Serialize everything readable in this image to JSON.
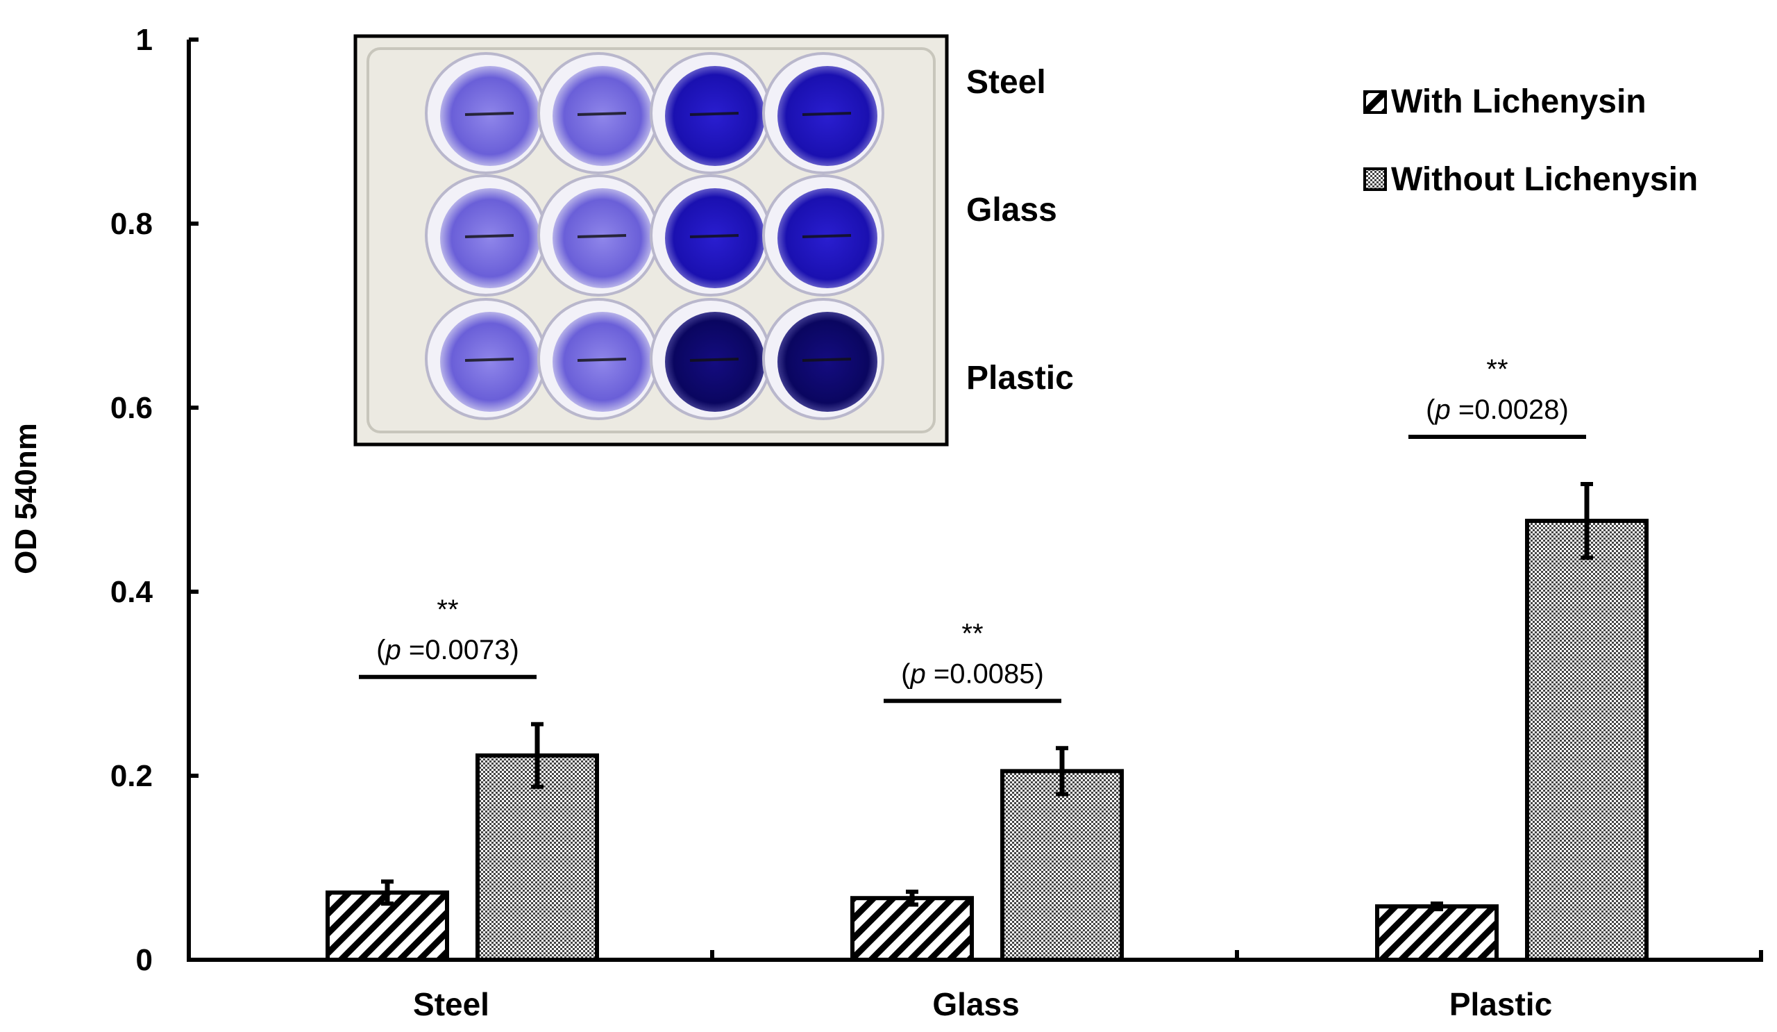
{
  "chart_data": {
    "type": "bar",
    "ylabel": "OD 540nm",
    "xlabel": "",
    "ylim": [
      0,
      1
    ],
    "yticks": [
      0,
      0.2,
      0.4,
      0.6,
      0.8,
      1
    ],
    "ytick_labels": [
      "0",
      "0.2",
      "0.4",
      "0.6",
      "0.8",
      "1"
    ],
    "categories": [
      "Steel",
      "Glass",
      "Plastic"
    ],
    "series": [
      {
        "name": "With Lichenysin",
        "values": [
          0.073,
          0.067,
          0.058
        ],
        "errors": [
          0.012,
          0.007,
          0.003
        ],
        "pattern": "diagonal-hatch"
      },
      {
        "name": "Without Lichenysin",
        "values": [
          0.222,
          0.205,
          0.477
        ],
        "errors": [
          0.034,
          0.025,
          0.04
        ],
        "pattern": "fine-checker"
      }
    ],
    "annotations": [
      {
        "category": "Steel",
        "stars": "**",
        "p_prefix": "(",
        "p_italic": "p",
        "p_value": " =0.0073)"
      },
      {
        "category": "Glass",
        "stars": "**",
        "p_prefix": "(",
        "p_italic": "p",
        "p_value": " =0.0085)"
      },
      {
        "category": "Plastic",
        "stars": "**",
        "p_prefix": "(",
        "p_italic": "p",
        "p_value": " =0.0028)"
      }
    ],
    "legend_position": "top-right",
    "grid": false
  },
  "inset": {
    "labels": [
      "Steel",
      "Glass",
      "Plastic"
    ],
    "well_colors": {
      "light": "#7a6fe0",
      "dark": "#1f12b8",
      "darkest": "#0c0870",
      "plate": "#eceae2"
    }
  },
  "colors": {
    "axis": "#000000",
    "bar_stroke": "#000000",
    "bar_fill": "#ffffff"
  }
}
